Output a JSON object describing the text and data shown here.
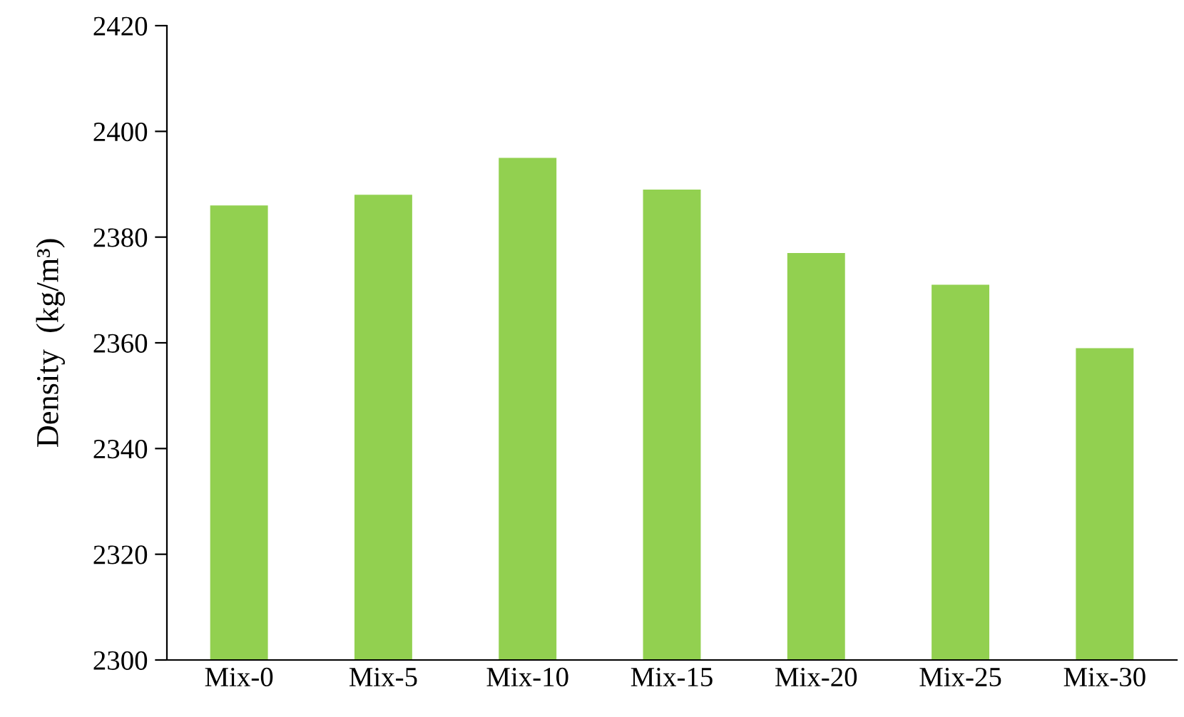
{
  "chart_data": {
    "type": "bar",
    "ylabel": "Density  (kg/m³)",
    "categories": [
      "Mix-0",
      "Mix-5",
      "Mix-10",
      "Mix-15",
      "Mix-20",
      "Mix-25",
      "Mix-30"
    ],
    "values": [
      2386,
      2388,
      2395,
      2389,
      2377,
      2371,
      2359
    ],
    "color": "#92d050",
    "ylim": [
      2300,
      2420
    ],
    "yticks": [
      2300,
      2320,
      2340,
      2360,
      2380,
      2400,
      2420
    ],
    "grid": false,
    "legend": false
  }
}
